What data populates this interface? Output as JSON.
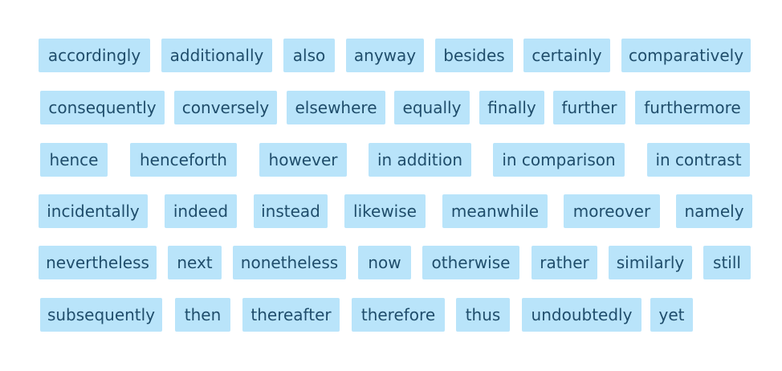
{
  "colors": {
    "chip_background": "#b9e4fa",
    "chip_text": "#1f4d6b",
    "page_background": "#ffffff"
  },
  "rows": [
    [
      "accordingly",
      "additionally",
      "also",
      "anyway",
      "besides",
      "certainly",
      "comparatively"
    ],
    [
      "consequently",
      "conversely",
      "elsewhere",
      "equally",
      "finally",
      "further",
      "furthermore"
    ],
    [
      "hence",
      "henceforth",
      "however",
      "in addition",
      "in comparison",
      "in contrast"
    ],
    [
      "incidentally",
      "indeed",
      "instead",
      "likewise",
      "meanwhile",
      "moreover",
      "namely"
    ],
    [
      "nevertheless",
      "next",
      "nonetheless",
      "now",
      "otherwise",
      "rather",
      "similarly",
      "still"
    ],
    [
      "subsequently",
      "then",
      "thereafter",
      "therefore",
      "thus",
      "undoubtedly",
      "yet"
    ]
  ]
}
